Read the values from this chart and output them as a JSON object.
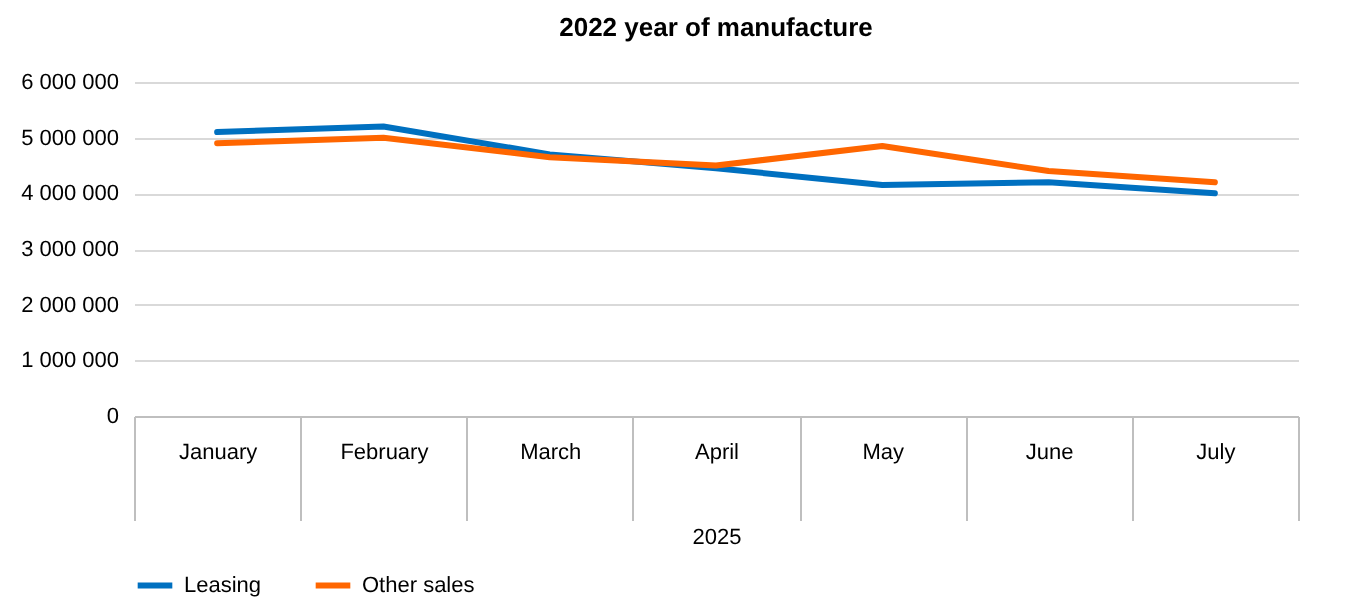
{
  "chart_data": {
    "type": "line",
    "title": "2022 year of manufacture",
    "xlabel": "2025",
    "categories": [
      "January",
      "February",
      "March",
      "April",
      "May",
      "June",
      "July"
    ],
    "series": [
      {
        "name": "Leasing",
        "color": "#0070c0",
        "values": [
          5100000,
          5200000,
          4700000,
          4450000,
          4150000,
          4200000,
          4000000
        ]
      },
      {
        "name": "Other sales",
        "color": "#ff6600",
        "values": [
          4900000,
          5000000,
          4650000,
          4500000,
          4850000,
          4400000,
          4200000
        ]
      }
    ],
    "ylim": [
      0,
      6000000
    ],
    "yticks": [
      {
        "value": 0,
        "label": "0"
      },
      {
        "value": 1000000,
        "label": "1 000 000"
      },
      {
        "value": 2000000,
        "label": "2 000 000"
      },
      {
        "value": 3000000,
        "label": "3 000 000"
      },
      {
        "value": 4000000,
        "label": "4 000 000"
      },
      {
        "value": 5000000,
        "label": "5 000 000"
      },
      {
        "value": 6000000,
        "label": "6 000 000"
      }
    ],
    "grid": "y",
    "legend": "bottom",
    "marker": "none",
    "line_style": "solid"
  }
}
